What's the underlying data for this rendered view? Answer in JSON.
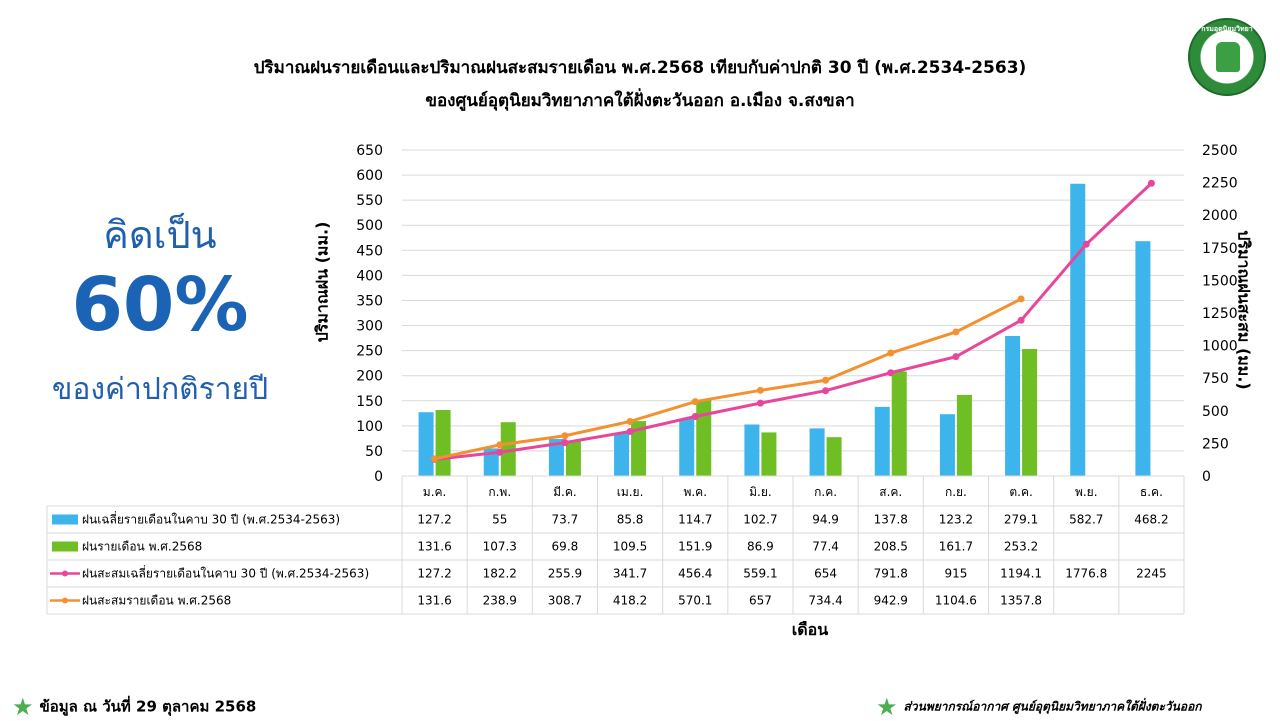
{
  "title_line1": "ปริมาณฝนรายเดือนและปริมาณฝนสะสมรายเดือน  พ.ศ.2568  เทียบกับค่าปกติ 30 ปี (พ.ศ.2534-2563)",
  "title_line2": "ของศูนย์อุตุนิยมวิทยาภาคใต้ฝั่งตะวันออก  อ.เมือง  จ.สงขลา",
  "logo_text": "กรมอุตุนิยมวิทยา",
  "percent": {
    "prefix": "คิดเป็น",
    "value": "60%",
    "suffix": "ของค่าปกติรายปี"
  },
  "footer": {
    "left": "ข้อมูล ณ วันที่ 29 ตุลาคม 2568",
    "right": "ส่วนพยากรณ์อากาศ ศูนย์อุตุนิยมวิทยาภาคใต้ฝั่งตะวันออก",
    "star_icon": "star-icon"
  },
  "chart_data": {
    "type": "bar",
    "xlabel": "เดือน",
    "ylabel": "ปริมาณฝน (มม.)",
    "y2label": "ปริมาณฝนสะสม (มม.)",
    "ylim": [
      0,
      650
    ],
    "yticks": [
      0,
      50,
      100,
      150,
      200,
      250,
      300,
      350,
      400,
      450,
      500,
      550,
      600,
      650
    ],
    "y2lim": [
      0,
      2500
    ],
    "y2ticks": [
      0,
      250,
      500,
      750,
      1000,
      1250,
      1500,
      1750,
      2000,
      2250,
      2500
    ],
    "grid": true,
    "categories": [
      "ม.ค.",
      "ก.พ.",
      "มี.ค.",
      "เม.ย.",
      "พ.ค.",
      "มิ.ย.",
      "ก.ค.",
      "ส.ค.",
      "ก.ย.",
      "ต.ค.",
      "พ.ย.",
      "ธ.ค."
    ],
    "series": [
      {
        "name": "ฝนเฉลี่ยรายเดือนในคาบ 30 ปี (พ.ศ.2534-2563)",
        "kind": "bar",
        "axis": "left",
        "color": "#3db4ec",
        "values": [
          127.2,
          55,
          73.7,
          85.8,
          114.7,
          102.7,
          94.9,
          137.8,
          123.2,
          279.1,
          582.7,
          468.2
        ]
      },
      {
        "name": "ฝนรายเดือน พ.ศ.2568",
        "kind": "bar",
        "axis": "left",
        "color": "#6fbe23",
        "values": [
          131.6,
          107.3,
          69.8,
          109.5,
          151.9,
          86.9,
          77.4,
          208.5,
          161.7,
          253.2,
          null,
          null
        ]
      },
      {
        "name": "ฝนสะสมเฉลี่ยรายเดือนในคาบ 30 ปี (พ.ศ.2534-2563)",
        "kind": "line",
        "axis": "right",
        "color": "#e8469b",
        "values": [
          127.2,
          182.2,
          255.9,
          341.7,
          456.4,
          559.1,
          654,
          791.8,
          915,
          1194.1,
          1776.8,
          2245
        ]
      },
      {
        "name": "ฝนสะสมรายเดือน พ.ศ.2568",
        "kind": "line",
        "axis": "right",
        "color": "#f39130",
        "values": [
          131.6,
          238.9,
          308.7,
          418.2,
          570.1,
          657,
          734.4,
          942.9,
          1104.6,
          1357.8,
          null,
          null
        ]
      }
    ]
  }
}
